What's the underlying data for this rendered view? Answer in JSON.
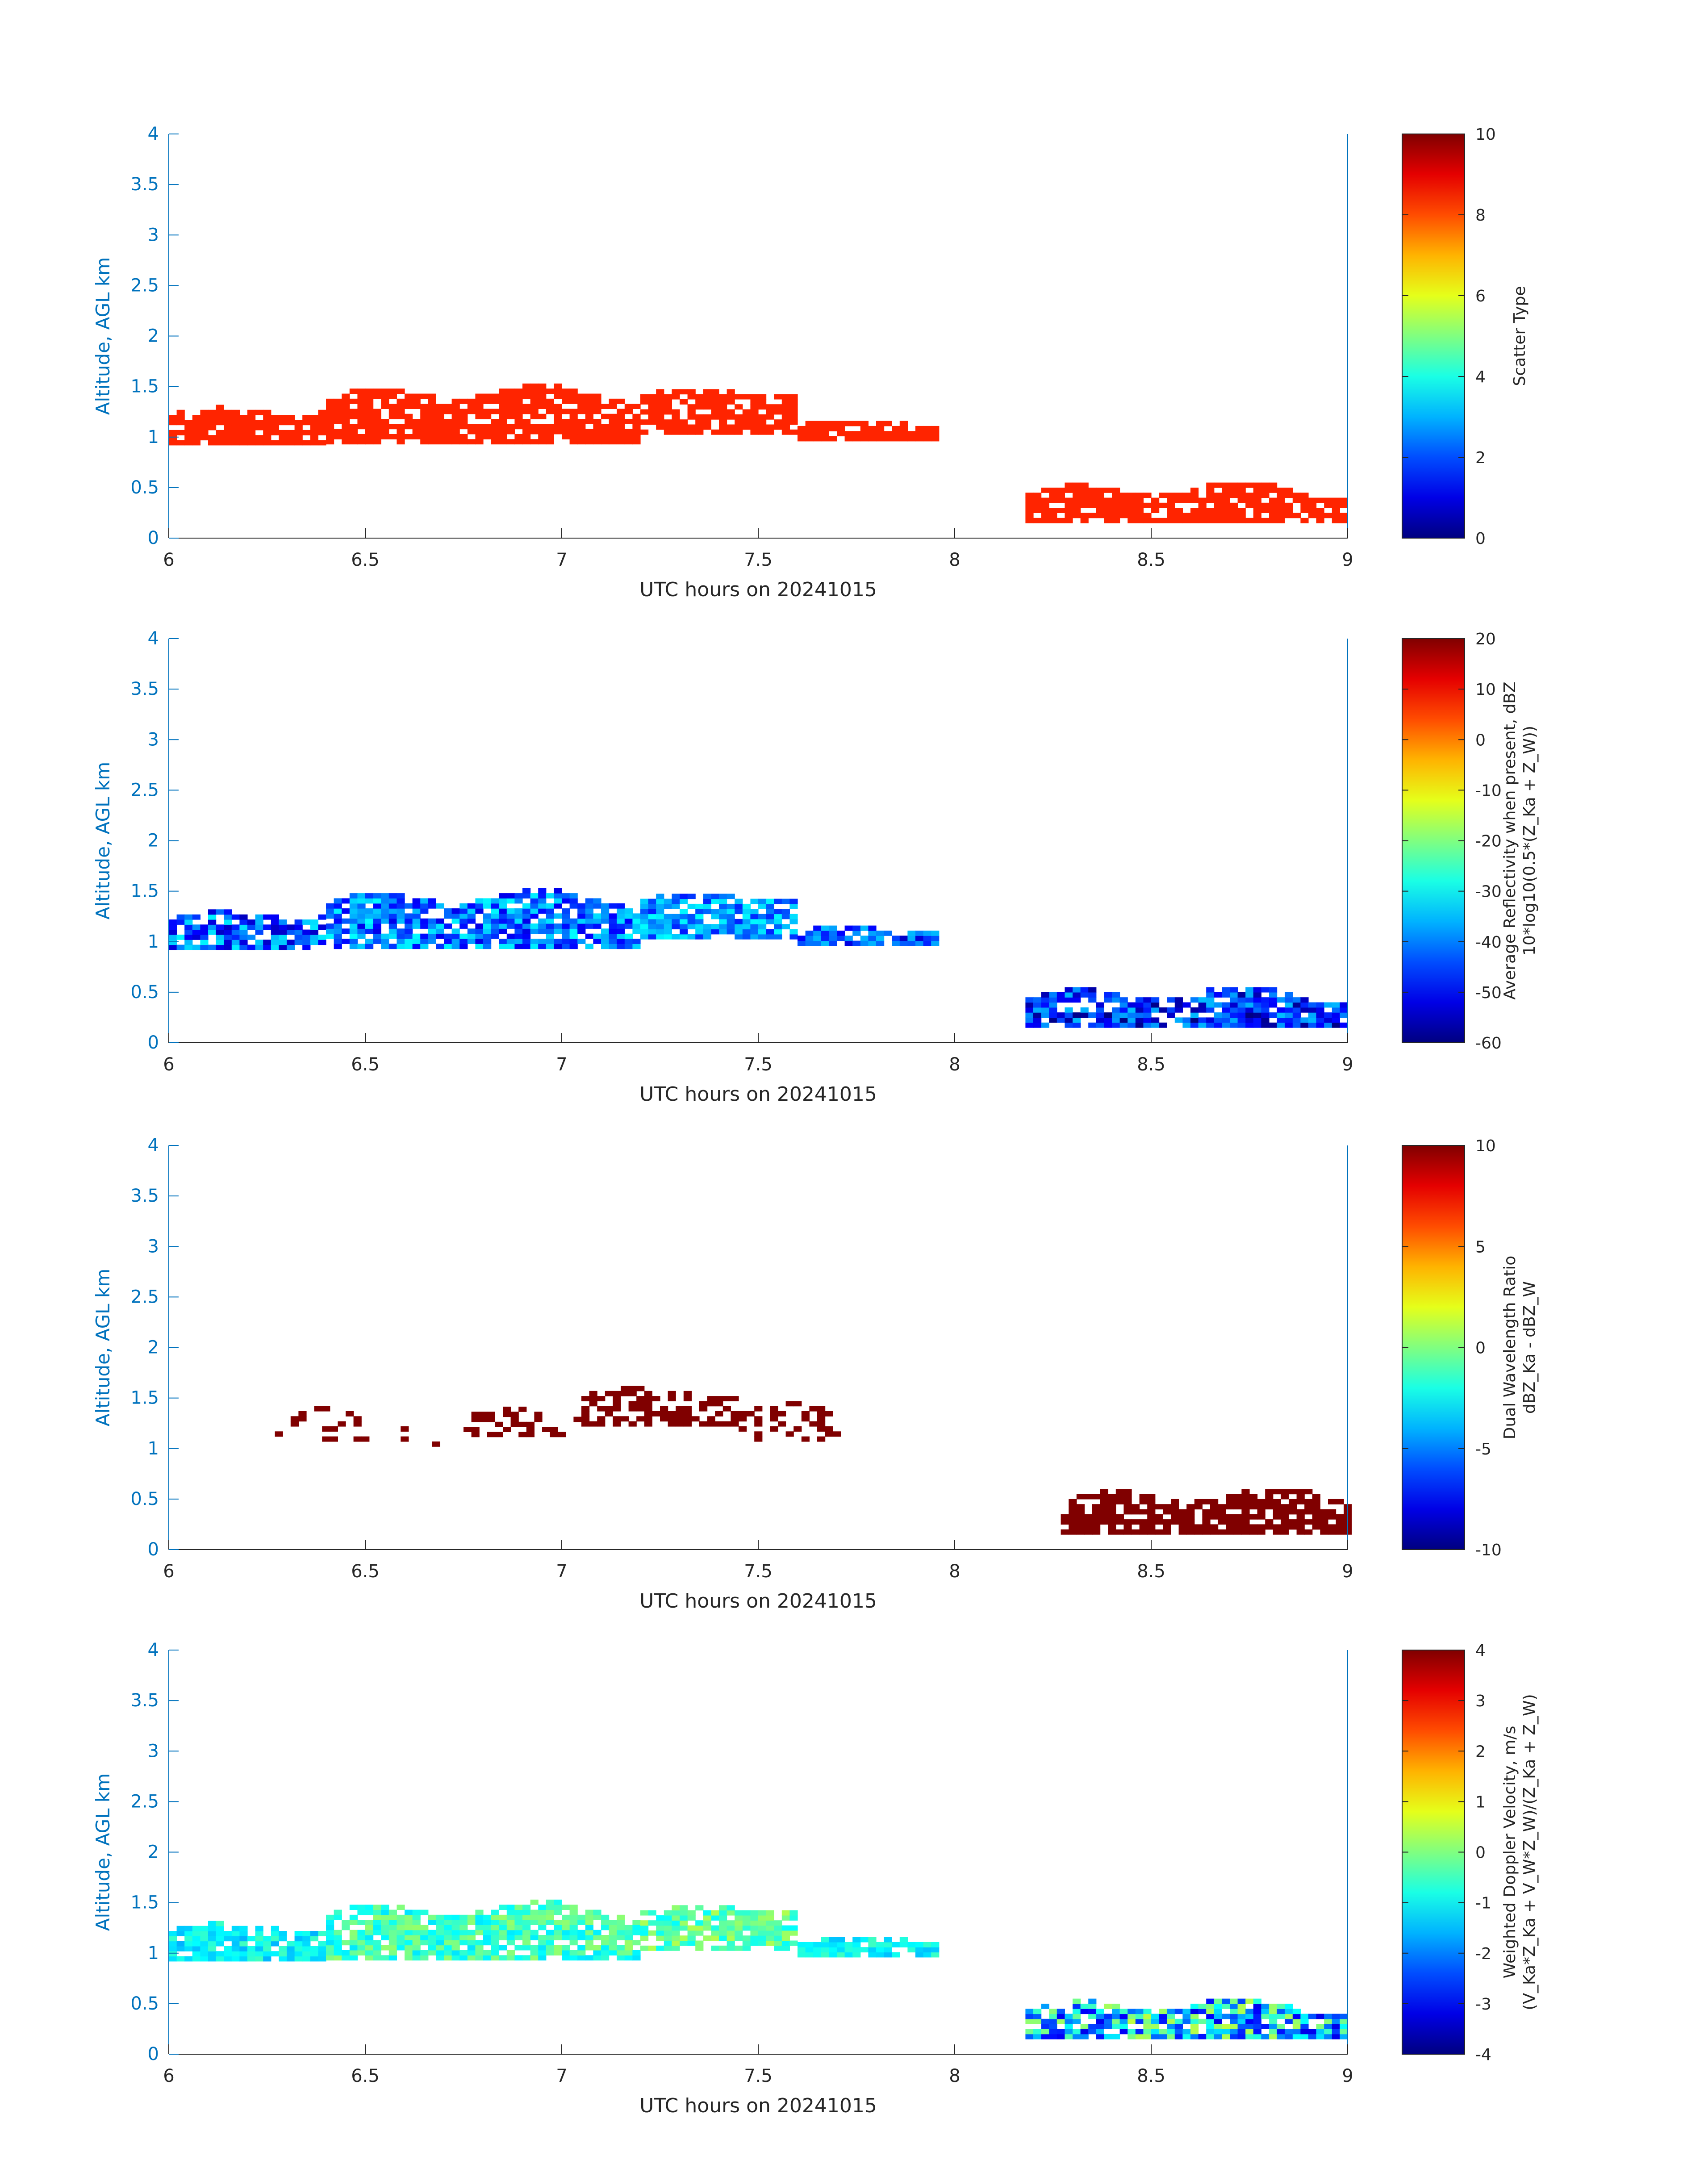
{
  "figure": {
    "panels": [
      {
        "colorbar": {
          "labels": [
            "Scatter Type"
          ],
          "min": 0,
          "max": 10,
          "ticks": [
            "0",
            "2",
            "4",
            "6",
            "8",
            "10"
          ]
        }
      },
      {
        "colorbar": {
          "labels": [
            "Average Reflectivity when present, dBZ",
            "10*log10(0.5*(Z_Ka + Z_W))"
          ],
          "min": -60,
          "max": 20,
          "ticks": [
            "-60",
            "-50",
            "-40",
            "-30",
            "-20",
            "-10",
            "0",
            "10",
            "20"
          ]
        }
      },
      {
        "colorbar": {
          "labels": [
            "Dual Wavelength Ratio",
            "dBZ_Ka - dBZ_W"
          ],
          "min": -10,
          "max": 10,
          "ticks": [
            "-10",
            "-5",
            "0",
            "5",
            "10"
          ]
        }
      },
      {
        "colorbar": {
          "labels": [
            "Weighted Doppler Velocity, m/s",
            "(V_Ka*Z_Ka + V_W*Z_W)/(Z_Ka + Z_W)"
          ],
          "min": -4,
          "max": 4,
          "ticks": [
            "-4",
            "-3",
            "-2",
            "-1",
            "0",
            "1",
            "2",
            "3",
            "4"
          ]
        }
      }
    ]
  },
  "chart_data": [
    {
      "type": "heatmap",
      "title": "",
      "xlabel": "UTC hours on 20241015",
      "ylabel": "Altitude, AGL km",
      "xlim": [
        6,
        9
      ],
      "ylim": [
        0,
        4
      ],
      "xticks": [
        "6",
        "6.5",
        "7",
        "7.5",
        "8",
        "8.5",
        "9"
      ],
      "yticks": [
        "0",
        "0.5",
        "1",
        "1.5",
        "2",
        "2.5",
        "3",
        "3.5",
        "4"
      ],
      "colormap": "jet",
      "clim": [
        0,
        10
      ],
      "colorbar_label": "Scatter Type",
      "layers": [
        {
          "x_start": 6.0,
          "x_end": 6.4,
          "y_base": 1.1,
          "y_amp": 0.2,
          "value": 8.4
        },
        {
          "x_start": 6.4,
          "x_end": 7.2,
          "y_base": 1.2,
          "y_amp": 0.3,
          "value": 8.4
        },
        {
          "x_start": 7.2,
          "x_end": 7.6,
          "y_base": 1.25,
          "y_amp": 0.25,
          "value": 8.4
        },
        {
          "x_start": 7.6,
          "x_end": 7.95,
          "y_base": 1.05,
          "y_amp": 0.1,
          "value": 8.4
        },
        {
          "x_start": 8.18,
          "x_end": 9.0,
          "y_base": 0.25,
          "y_amp": 0.3,
          "value": 8.4
        }
      ]
    },
    {
      "type": "heatmap",
      "title": "",
      "xlabel": "UTC hours on 20241015",
      "ylabel": "Altitude, AGL km",
      "xlim": [
        6,
        9
      ],
      "ylim": [
        0,
        4
      ],
      "xticks": [
        "6",
        "6.5",
        "7",
        "7.5",
        "8",
        "8.5",
        "9"
      ],
      "yticks": [
        "0",
        "0.5",
        "1",
        "1.5",
        "2",
        "2.5",
        "3",
        "3.5",
        "4"
      ],
      "colormap": "jet",
      "clim": [
        -60,
        20
      ],
      "colorbar_label": "Average Reflectivity when present, dBZ / 10*log10(0.5*(Z_Ka + Z_W))",
      "layers": [
        {
          "x_start": 6.0,
          "x_end": 6.4,
          "y_base": 1.1,
          "y_amp": 0.2,
          "value_range": [
            -55,
            -30
          ]
        },
        {
          "x_start": 6.4,
          "x_end": 7.2,
          "y_base": 1.2,
          "y_amp": 0.3,
          "value_range": [
            -52,
            -30
          ]
        },
        {
          "x_start": 7.2,
          "x_end": 7.6,
          "y_base": 1.25,
          "y_amp": 0.25,
          "value_range": [
            -48,
            -30
          ]
        },
        {
          "x_start": 7.6,
          "x_end": 7.95,
          "y_base": 1.05,
          "y_amp": 0.1,
          "value_range": [
            -55,
            -35
          ]
        },
        {
          "x_start": 8.18,
          "x_end": 9.0,
          "y_base": 0.25,
          "y_amp": 0.3,
          "value_range": [
            -60,
            -35
          ]
        }
      ]
    },
    {
      "type": "heatmap",
      "title": "",
      "xlabel": "UTC hours on 20241015",
      "ylabel": "Altitude, AGL km",
      "xlim": [
        6,
        9
      ],
      "ylim": [
        0,
        4
      ],
      "xticks": [
        "6",
        "6.5",
        "7",
        "7.5",
        "8",
        "8.5",
        "9"
      ],
      "yticks": [
        "0",
        "0.5",
        "1",
        "1.5",
        "2",
        "2.5",
        "3",
        "3.5",
        "4"
      ],
      "colormap": "jet",
      "clim": [
        -10,
        10
      ],
      "colorbar_label": "Dual Wavelength Ratio / dBZ_Ka - dBZ_W",
      "layers": [
        {
          "x_start": 6.25,
          "x_end": 6.7,
          "y_base": 1.2,
          "y_amp": 0.2,
          "value": 10,
          "density": 0.12
        },
        {
          "x_start": 6.75,
          "x_end": 7.05,
          "y_base": 1.25,
          "y_amp": 0.15,
          "value": 10,
          "density": 0.35
        },
        {
          "x_start": 7.05,
          "x_end": 7.45,
          "y_base": 1.4,
          "y_amp": 0.2,
          "value": 10,
          "density": 0.6
        },
        {
          "x_start": 7.45,
          "x_end": 7.7,
          "y_base": 1.25,
          "y_amp": 0.2,
          "value": 10,
          "density": 0.35
        },
        {
          "x_start": 8.27,
          "x_end": 9.0,
          "y_base": 0.3,
          "y_amp": 0.3,
          "value": 10,
          "density": 0.8
        }
      ]
    },
    {
      "type": "heatmap",
      "title": "",
      "xlabel": "UTC hours on 20241015",
      "ylabel": "Altitude, AGL km",
      "xlim": [
        6,
        9
      ],
      "ylim": [
        0,
        4
      ],
      "xticks": [
        "6",
        "6.5",
        "7",
        "7.5",
        "8",
        "8.5",
        "9"
      ],
      "yticks": [
        "0",
        "0.5",
        "1",
        "1.5",
        "2",
        "2.5",
        "3",
        "3.5",
        "4"
      ],
      "colormap": "jet",
      "clim": [
        -4,
        4
      ],
      "colorbar_label": "Weighted Doppler Velocity, m/s / (V_Ka*Z_Ka + V_W*Z_W)/(Z_Ka + Z_W)",
      "layers": [
        {
          "x_start": 6.0,
          "x_end": 6.4,
          "y_base": 1.1,
          "y_amp": 0.2,
          "value_range": [
            -1.6,
            -0.5
          ]
        },
        {
          "x_start": 6.4,
          "x_end": 7.2,
          "y_base": 1.2,
          "y_amp": 0.3,
          "value_range": [
            -1.2,
            0.2
          ]
        },
        {
          "x_start": 7.2,
          "x_end": 7.6,
          "y_base": 1.25,
          "y_amp": 0.25,
          "value_range": [
            -1.0,
            0.4
          ]
        },
        {
          "x_start": 7.6,
          "x_end": 7.95,
          "y_base": 1.05,
          "y_amp": 0.1,
          "value_range": [
            -1.5,
            -0.5
          ]
        },
        {
          "x_start": 8.18,
          "x_end": 9.0,
          "y_base": 0.25,
          "y_amp": 0.3,
          "value_range": [
            -3.2,
            0.5
          ]
        }
      ]
    }
  ]
}
